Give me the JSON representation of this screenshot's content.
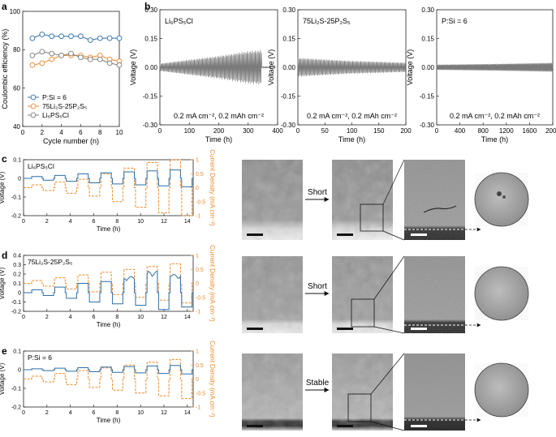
{
  "colors": {
    "blue": "#2f6fa8",
    "orange": "#ef8a2b",
    "gray": "#7b7b7b",
    "dark_gray": "#555555",
    "scale_bar": "#111111"
  },
  "panels": {
    "a": "a",
    "b": "b",
    "c": "c",
    "d": "d",
    "e": "e"
  },
  "chart_data": [
    {
      "id": "a",
      "type": "scatter",
      "xlabel": "Cycle number (n)",
      "ylabel": "Coulombic efficiency (%)",
      "xlim": [
        0,
        10
      ],
      "ylim": [
        40,
        100
      ],
      "xticks": [
        0,
        2,
        4,
        6,
        8,
        10
      ],
      "yticks": [
        40,
        60,
        80,
        100
      ],
      "legend_position": "bottom-left",
      "series": [
        {
          "name": "P:Si = 6",
          "color": "blue",
          "x": [
            1,
            2,
            3,
            4,
            5,
            6,
            7,
            8,
            9,
            10
          ],
          "values": [
            86,
            88,
            87,
            87,
            87,
            87,
            85,
            86,
            86,
            86
          ]
        },
        {
          "name": "75Li₂S-25P₂S₅",
          "color": "orange",
          "x": [
            1,
            2,
            3,
            4,
            5,
            6,
            7,
            8,
            9,
            10
          ],
          "values": [
            72,
            73,
            75,
            77,
            77,
            77,
            76,
            77,
            75,
            74
          ]
        },
        {
          "name": "Li₆PS₅Cl",
          "color": "gray",
          "x": [
            1,
            2,
            3,
            4,
            5,
            6,
            7,
            8,
            9,
            10
          ],
          "values": [
            77,
            79,
            78,
            77,
            78,
            76,
            75,
            75,
            73,
            72
          ]
        }
      ]
    },
    {
      "id": "b1",
      "type": "line",
      "label": "Li₆PS₅Cl",
      "annotation": "0.2 mA cm⁻², 0.2 mAh cm⁻²",
      "xlabel": "Time (h)",
      "ylabel": "Voltage (V)",
      "xlim": [
        0,
        400
      ],
      "ylim": [
        -0.3,
        0.3
      ],
      "xticks": [
        0,
        100,
        200,
        300,
        400
      ],
      "yticks": [
        -0.3,
        -0.15,
        0.0,
        0.15,
        0.3
      ],
      "ytick_labels": [
        "-0.30",
        "-0.15",
        "0.00",
        "0.15",
        "0.30"
      ],
      "envelope": {
        "x": [
          0,
          100,
          200,
          300,
          345,
          346,
          380
        ],
        "upper": [
          0.02,
          0.04,
          0.06,
          0.085,
          0.09,
          0.003,
          0.003
        ]
      }
    },
    {
      "id": "b2",
      "type": "line",
      "label": "75Li₂S-25P₂S₅",
      "annotation": "0.2 mA cm⁻², 0.2 mAh cm⁻²",
      "xlabel": "Time (h)",
      "ylabel": "Voltage (V)",
      "xlim": [
        0,
        200
      ],
      "ylim": [
        -0.3,
        0.3
      ],
      "xticks": [
        0,
        50,
        100,
        150,
        200
      ],
      "yticks": [
        -0.3,
        -0.15,
        0.0,
        0.15,
        0.3
      ],
      "ytick_labels": [
        "-0.30",
        "-0.15",
        "0.00",
        "0.15",
        "0.30"
      ],
      "envelope": {
        "x": [
          0,
          50,
          100,
          150,
          200
        ],
        "upper": [
          0.05,
          0.042,
          0.034,
          0.03,
          0.025
        ]
      }
    },
    {
      "id": "b3",
      "type": "line",
      "label": "P:Si = 6",
      "annotation": "0.2 mA cm⁻², 0.2 mAh cm⁻²",
      "xlabel": "Time (h)",
      "ylabel": "Voltage (V)",
      "xlim": [
        0,
        2000
      ],
      "ylim": [
        -0.3,
        0.3
      ],
      "xticks": [
        0,
        400,
        800,
        1200,
        1600,
        2000
      ],
      "yticks": [
        -0.3,
        -0.15,
        0.0,
        0.15,
        0.3
      ],
      "ytick_labels": [
        "-0.30",
        "-0.15",
        "0.00",
        "0.15",
        "0.30"
      ],
      "envelope": {
        "x": [
          0,
          1000,
          2000
        ],
        "upper": [
          0.014,
          0.018,
          0.024
        ]
      }
    },
    {
      "id": "c",
      "type": "line",
      "label": "Li₆PS₅Cl",
      "xlabel": "Time (h)",
      "ylabel": "Voltage (V)",
      "y2label": "Current Density (mA cm⁻²)",
      "xlim": [
        0,
        14.5
      ],
      "ylim": [
        -0.2,
        0.1
      ],
      "y2lim": [
        -1.0,
        1.0
      ],
      "xticks": [
        0,
        2,
        4,
        6,
        8,
        10,
        12,
        14
      ],
      "yticks": [
        -0.2,
        -0.1,
        0.0,
        0.1
      ],
      "y2ticks": [
        -1.0,
        -0.5,
        0.0,
        0.5,
        1.0
      ],
      "current_steps": [
        0.1,
        0.2,
        0.3,
        0.5,
        0.7,
        0.9,
        1.0
      ],
      "voltage_steps": [
        0.01,
        0.016,
        0.024,
        0.03,
        0.035,
        0.04,
        0.045
      ]
    },
    {
      "id": "d",
      "type": "line",
      "label": "75Li₂S-25P₂S₅",
      "xlabel": "Time (h)",
      "ylabel": "Voltage (V)",
      "y2label": "Current Density (mA cm⁻²)",
      "xlim": [
        0,
        14.5
      ],
      "ylim": [
        -0.2,
        0.4
      ],
      "y2lim": [
        -1.0,
        1.0
      ],
      "xticks": [
        0,
        2,
        4,
        6,
        8,
        10,
        12,
        14
      ],
      "yticks": [
        -0.2,
        -0.1,
        0.0,
        0.1,
        0.2,
        0.3,
        0.4
      ],
      "y2ticks": [
        -1.0,
        -0.5,
        0.0,
        0.5,
        1.0
      ],
      "current_steps": [
        0.1,
        0.2,
        0.3,
        0.4,
        0.5,
        0.6,
        0.7
      ],
      "voltage_steps": [
        0.03,
        0.06,
        0.1,
        0.12,
        0.15,
        0.2,
        0.17
      ]
    },
    {
      "id": "e",
      "type": "line",
      "label": "P:Si = 6",
      "xlabel": "Time (h)",
      "ylabel": "Voltage (V)",
      "y2label": "Current Density (mA cm⁻²)",
      "xlim": [
        0,
        14.5
      ],
      "ylim": [
        -0.2,
        0.1
      ],
      "y2lim": [
        -1.0,
        1.0
      ],
      "xticks": [
        0,
        2,
        4,
        6,
        8,
        10,
        12,
        14
      ],
      "yticks": [
        -0.2,
        -0.1,
        0.0,
        0.1
      ],
      "y2ticks": [
        -1.0,
        -0.5,
        0.0,
        0.5,
        1.0
      ],
      "current_steps": [
        0.1,
        0.2,
        0.3,
        0.4,
        0.5,
        0.6,
        0.7
      ],
      "voltage_steps": [
        0.005,
        0.008,
        0.011,
        0.014,
        0.017,
        0.02,
        0.023
      ]
    }
  ],
  "micrographs": {
    "c": {
      "arrow_label": "Short"
    },
    "d": {
      "arrow_label": "Short"
    },
    "e": {
      "arrow_label": "Stable"
    }
  }
}
